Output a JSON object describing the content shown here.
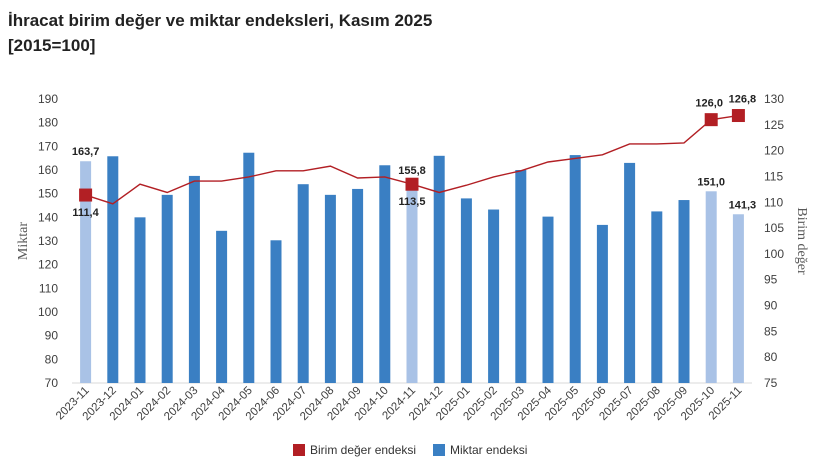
{
  "title": "İhracat birim değer ve miktar endeksleri, Kasım 2025",
  "subtitle": "[2015=100]",
  "chart_data": {
    "type": "bar+line",
    "categories": [
      "2023-11",
      "2023-12",
      "2024-01",
      "2024-02",
      "2024-03",
      "2024-04",
      "2024-05",
      "2024-06",
      "2024-07",
      "2024-08",
      "2024-09",
      "2024-10",
      "2024-11",
      "2024-12",
      "2025-01",
      "2025-02",
      "2025-03",
      "2025-04",
      "2025-05",
      "2025-06",
      "2025-07",
      "2025-08",
      "2025-09",
      "2025-10",
      "2025-11"
    ],
    "ylabel_left": "Miktar",
    "ylabel_right": "Birim değer",
    "ylim_left": [
      70,
      190
    ],
    "yticks_left": [
      "70",
      "80",
      "90",
      "100",
      "110",
      "120",
      "130",
      "140",
      "150",
      "160",
      "170",
      "180",
      "190"
    ],
    "ylim_right": [
      75,
      130
    ],
    "yticks_right": [
      "75",
      "80",
      "85",
      "90",
      "95",
      "100",
      "105",
      "110",
      "115",
      "120",
      "125",
      "130"
    ],
    "series": [
      {
        "name": "Miktar endeksi",
        "type": "bar",
        "axis": "left",
        "color": "#3a7fc3",
        "highlight_color": "#a9c2e6",
        "highlight_indices": [
          0,
          12,
          23,
          24
        ],
        "values": [
          163.7,
          165.8,
          140.0,
          149.5,
          157.5,
          134.3,
          167.3,
          130.3,
          154.0,
          149.5,
          152.0,
          162.0,
          155.8,
          166.0,
          148.0,
          143.3,
          160.0,
          140.3,
          166.3,
          136.8,
          163.0,
          142.5,
          147.3,
          151.0,
          141.3
        ]
      },
      {
        "name": "Birim değer endeksi",
        "type": "line",
        "axis": "right",
        "color": "#b21f24",
        "marker_indices": [
          0,
          12,
          23,
          24
        ],
        "values": [
          111.4,
          109.7,
          113.5,
          111.9,
          114.1,
          114.1,
          114.9,
          116.1,
          116.1,
          117.0,
          114.7,
          114.9,
          113.5,
          111.9,
          113.3,
          114.9,
          116.1,
          117.8,
          118.5,
          119.2,
          121.3,
          121.3,
          121.5,
          126.0,
          126.8
        ]
      }
    ],
    "data_labels": [
      {
        "series": "Miktar endeksi",
        "index": 0,
        "text": "163,7"
      },
      {
        "series": "Miktar endeksi",
        "index": 12,
        "text": "155,8"
      },
      {
        "series": "Miktar endeksi",
        "index": 23,
        "text": "151,0"
      },
      {
        "series": "Miktar endeksi",
        "index": 24,
        "text": "141,3"
      },
      {
        "series": "Birim değer endeksi",
        "index": 0,
        "text": "111,4"
      },
      {
        "series": "Birim değer endeksi",
        "index": 12,
        "text": "113,5"
      },
      {
        "series": "Birim değer endeksi",
        "index": 23,
        "text": "126,0"
      },
      {
        "series": "Birim değer endeksi",
        "index": 24,
        "text": "126,8"
      }
    ],
    "legend": {
      "placement": "bottom",
      "items": [
        {
          "label": "Birim değer endeksi",
          "color": "#b21f24"
        },
        {
          "label": "Miktar endeksi",
          "color": "#3a7fc3"
        }
      ]
    },
    "grid": false
  }
}
